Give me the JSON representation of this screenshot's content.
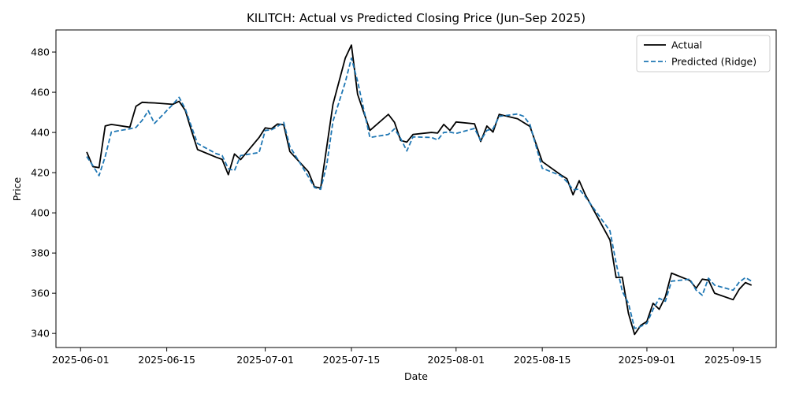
{
  "chart_data": {
    "type": "line",
    "title": "KILITCH: Actual vs Predicted Closing Price (Jun–Sep 2025)",
    "xlabel": "Date",
    "ylabel": "Price",
    "ylim": [
      333,
      491
    ],
    "xlim": [
      "2025-05-28",
      "2025-09-22"
    ],
    "x_ticks": [
      "2025-06-01",
      "2025-06-15",
      "2025-07-01",
      "2025-07-15",
      "2025-08-01",
      "2025-08-15",
      "2025-09-01",
      "2025-09-15"
    ],
    "y_ticks": [
      340,
      360,
      380,
      400,
      420,
      440,
      460,
      480
    ],
    "grid": false,
    "legend_position": "upper right",
    "series": [
      {
        "name": "Actual",
        "color": "#000000",
        "style": "solid",
        "points": [
          [
            "2025-06-02",
            430.3
          ],
          [
            "2025-06-03",
            423.0
          ],
          [
            "2025-06-04",
            422.5
          ],
          [
            "2025-06-05",
            443.2
          ],
          [
            "2025-06-06",
            444.0
          ],
          [
            "2025-06-09",
            442.6
          ],
          [
            "2025-06-10",
            453.0
          ],
          [
            "2025-06-11",
            455.0
          ],
          [
            "2025-06-12",
            454.8
          ],
          [
            "2025-06-13",
            454.7
          ],
          [
            "2025-06-16",
            454.0
          ],
          [
            "2025-06-17",
            455.5
          ],
          [
            "2025-06-18",
            451.0
          ],
          [
            "2025-06-19",
            441.0
          ],
          [
            "2025-06-20",
            431.5
          ],
          [
            "2025-06-23",
            427.7
          ],
          [
            "2025-06-24",
            426.6
          ],
          [
            "2025-06-25",
            419.0
          ],
          [
            "2025-06-26",
            429.3
          ],
          [
            "2025-06-27",
            426.5
          ],
          [
            "2025-06-30",
            437.5
          ],
          [
            "2025-07-01",
            442.3
          ],
          [
            "2025-07-02",
            441.8
          ],
          [
            "2025-07-03",
            444.2
          ],
          [
            "2025-07-04",
            443.8
          ],
          [
            "2025-07-05",
            430.5
          ],
          [
            "2025-07-08",
            420.5
          ],
          [
            "2025-07-09",
            413.0
          ],
          [
            "2025-07-10",
            412.3
          ],
          [
            "2025-07-11",
            433.0
          ],
          [
            "2025-07-12",
            454.0
          ],
          [
            "2025-07-14",
            477.0
          ],
          [
            "2025-07-15",
            483.5
          ],
          [
            "2025-07-16",
            459.0
          ],
          [
            "2025-07-18",
            441.0
          ],
          [
            "2025-07-21",
            449.0
          ],
          [
            "2025-07-22",
            445.0
          ],
          [
            "2025-07-23",
            436.0
          ],
          [
            "2025-07-24",
            435.2
          ],
          [
            "2025-07-25",
            439.0
          ],
          [
            "2025-07-28",
            440.0
          ],
          [
            "2025-07-29",
            439.7
          ],
          [
            "2025-07-30",
            444.0
          ],
          [
            "2025-07-31",
            441.0
          ],
          [
            "2025-08-01",
            445.2
          ],
          [
            "2025-08-04",
            444.3
          ],
          [
            "2025-08-05",
            435.5
          ],
          [
            "2025-08-06",
            443.2
          ],
          [
            "2025-08-07",
            440.2
          ],
          [
            "2025-08-08",
            449.0
          ],
          [
            "2025-08-11",
            446.8
          ],
          [
            "2025-08-12",
            444.9
          ],
          [
            "2025-08-13",
            443.0
          ],
          [
            "2025-08-15",
            425.5
          ],
          [
            "2025-08-18",
            418.9
          ],
          [
            "2025-08-19",
            417.0
          ],
          [
            "2025-08-20",
            409.0
          ],
          [
            "2025-08-21",
            416.0
          ],
          [
            "2025-08-22",
            409.0
          ],
          [
            "2025-08-26",
            386.5
          ],
          [
            "2025-08-27",
            367.8
          ],
          [
            "2025-08-28",
            368.0
          ],
          [
            "2025-08-29",
            350.0
          ],
          [
            "2025-08-30",
            339.5
          ],
          [
            "2025-08-31",
            344.0
          ],
          [
            "2025-09-01",
            346.0
          ],
          [
            "2025-09-02",
            355.0
          ],
          [
            "2025-09-03",
            352.0
          ],
          [
            "2025-09-04",
            358.3
          ],
          [
            "2025-09-05",
            370.0
          ],
          [
            "2025-09-08",
            366.3
          ],
          [
            "2025-09-09",
            362.5
          ],
          [
            "2025-09-10",
            367.0
          ],
          [
            "2025-09-11",
            366.5
          ],
          [
            "2025-09-12",
            360.0
          ],
          [
            "2025-09-15",
            356.8
          ],
          [
            "2025-09-16",
            362.0
          ],
          [
            "2025-09-17",
            365.3
          ],
          [
            "2025-09-18",
            364.0
          ]
        ]
      },
      {
        "name": "Predicted (Ridge)",
        "color": "#1f77b4",
        "style": "dashed",
        "points": [
          [
            "2025-06-02",
            428.0
          ],
          [
            "2025-06-03",
            423.5
          ],
          [
            "2025-06-04",
            418.5
          ],
          [
            "2025-06-05",
            428.0
          ],
          [
            "2025-06-06",
            440.2
          ],
          [
            "2025-06-09",
            441.8
          ],
          [
            "2025-06-10",
            442.5
          ],
          [
            "2025-06-11",
            446.0
          ],
          [
            "2025-06-12",
            450.8
          ],
          [
            "2025-06-13",
            444.5
          ],
          [
            "2025-06-16",
            454.0
          ],
          [
            "2025-06-17",
            457.5
          ],
          [
            "2025-06-18",
            451.8
          ],
          [
            "2025-06-19",
            443.0
          ],
          [
            "2025-06-20",
            434.5
          ],
          [
            "2025-06-23",
            429.5
          ],
          [
            "2025-06-24",
            428.5
          ],
          [
            "2025-06-25",
            422.0
          ],
          [
            "2025-06-26",
            421.0
          ],
          [
            "2025-06-27",
            428.5
          ],
          [
            "2025-06-30",
            430.0
          ],
          [
            "2025-07-01",
            441.0
          ],
          [
            "2025-07-02",
            441.3
          ],
          [
            "2025-07-03",
            443.0
          ],
          [
            "2025-07-04",
            445.0
          ],
          [
            "2025-07-05",
            433.0
          ],
          [
            "2025-07-08",
            418.0
          ],
          [
            "2025-07-09",
            412.6
          ],
          [
            "2025-07-10",
            411.7
          ],
          [
            "2025-07-11",
            424.0
          ],
          [
            "2025-07-12",
            445.5
          ],
          [
            "2025-07-14",
            465.0
          ],
          [
            "2025-07-15",
            477.0
          ],
          [
            "2025-07-16",
            465.5
          ],
          [
            "2025-07-18",
            437.5
          ],
          [
            "2025-07-21",
            439.0
          ],
          [
            "2025-07-22",
            441.8
          ],
          [
            "2025-07-23",
            437.0
          ],
          [
            "2025-07-24",
            430.8
          ],
          [
            "2025-07-25",
            437.8
          ],
          [
            "2025-07-28",
            437.5
          ],
          [
            "2025-07-29",
            436.3
          ],
          [
            "2025-07-30",
            440.0
          ],
          [
            "2025-07-31",
            440.2
          ],
          [
            "2025-08-01",
            439.5
          ],
          [
            "2025-08-04",
            442.0
          ],
          [
            "2025-08-05",
            436.0
          ],
          [
            "2025-08-06",
            441.0
          ],
          [
            "2025-08-07",
            441.8
          ],
          [
            "2025-08-08",
            448.0
          ],
          [
            "2025-08-11",
            449.2
          ],
          [
            "2025-08-12",
            448.0
          ],
          [
            "2025-08-13",
            444.0
          ],
          [
            "2025-08-15",
            422.2
          ],
          [
            "2025-08-18",
            418.5
          ],
          [
            "2025-08-19",
            415.5
          ],
          [
            "2025-08-20",
            411.5
          ],
          [
            "2025-08-21",
            411.8
          ],
          [
            "2025-08-22",
            408.0
          ],
          [
            "2025-08-26",
            391.0
          ],
          [
            "2025-08-27",
            375.0
          ],
          [
            "2025-08-28",
            361.0
          ],
          [
            "2025-08-29",
            355.0
          ],
          [
            "2025-08-30",
            342.5
          ],
          [
            "2025-08-31",
            343.5
          ],
          [
            "2025-09-01",
            345.0
          ],
          [
            "2025-09-02",
            352.0
          ],
          [
            "2025-09-03",
            357.5
          ],
          [
            "2025-09-04",
            356.0
          ],
          [
            "2025-09-05",
            366.0
          ],
          [
            "2025-09-08",
            367.0
          ],
          [
            "2025-09-09",
            361.5
          ],
          [
            "2025-09-10",
            359.0
          ],
          [
            "2025-09-11",
            367.5
          ],
          [
            "2025-09-12",
            364.0
          ],
          [
            "2025-09-15",
            361.5
          ],
          [
            "2025-09-16",
            365.5
          ],
          [
            "2025-09-17",
            367.8
          ],
          [
            "2025-09-18",
            366.0
          ]
        ]
      }
    ]
  }
}
